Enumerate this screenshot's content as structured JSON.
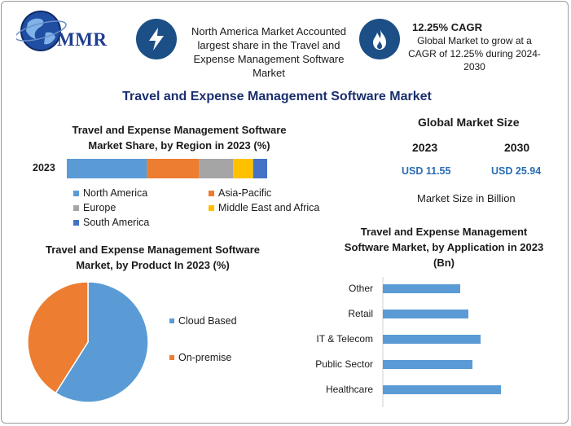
{
  "brand": {
    "logo_text": "MMR"
  },
  "header": {
    "share_text": "North America Market Accounted largest share in the Travel and Expense Management Software Market",
    "cagr_title": "12.25% CAGR",
    "cagr_text": "Global Market to grow at a CAGR of 12.25% during 2024-2030"
  },
  "title": "Travel and Expense Management Software Market",
  "global_size": {
    "title": "Global Market Size",
    "year_start": "2023",
    "year_end": "2030",
    "value_start": "USD 11.55",
    "value_end": "USD 25.94",
    "note": "Market Size in Billion"
  },
  "chart_data": [
    {
      "type": "bar",
      "orientation": "horizontal-stacked",
      "title": "Travel and Expense Management Software Market Share, by Region in 2023 (%)",
      "categories": [
        "2023"
      ],
      "series": [
        {
          "name": "North America",
          "values": [
            40
          ],
          "color": "#5b9bd5"
        },
        {
          "name": "Asia-Pacific",
          "values": [
            26
          ],
          "color": "#ed7d31"
        },
        {
          "name": "Europe",
          "values": [
            17
          ],
          "color": "#a5a5a5"
        },
        {
          "name": "Middle East and Africa",
          "values": [
            10
          ],
          "color": "#ffc000"
        },
        {
          "name": "South America",
          "values": [
            7
          ],
          "color": "#4472c4"
        }
      ]
    },
    {
      "type": "pie",
      "title": "Travel and Expense Management Software Market, by Product In 2023 (%)",
      "slices": [
        {
          "name": "Cloud Based",
          "value": 59,
          "color": "#5b9bd5"
        },
        {
          "name": "On-premise",
          "value": 41,
          "color": "#ed7d31"
        }
      ]
    },
    {
      "type": "bar",
      "orientation": "horizontal",
      "title": "Travel and Expense Management Software Market, by Application in 2023 (Bn)",
      "categories": [
        "Other",
        "Retail",
        "IT & Telecom",
        "Public Sector",
        "Healthcare"
      ],
      "values": [
        1.9,
        2.1,
        2.4,
        2.2,
        2.9
      ],
      "xlim": [
        0,
        4
      ],
      "color": "#5b9bd5"
    }
  ]
}
